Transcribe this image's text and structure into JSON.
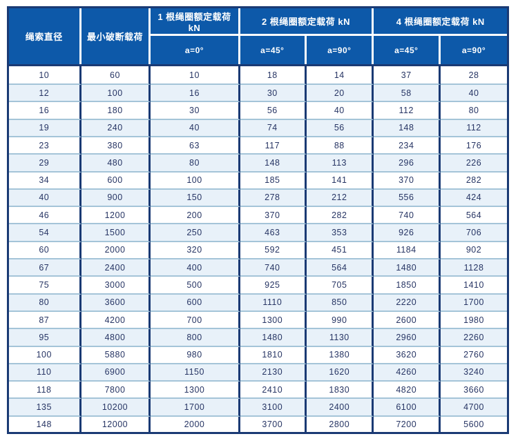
{
  "colors": {
    "header_bg": "#0d59a9",
    "border_navy": "#1a3a74",
    "row_alt_bg": "#e8f1f9",
    "row_divider": "#a4c4d8",
    "text_navy": "#273564",
    "header_text": "#ffffff"
  },
  "table": {
    "headers": {
      "rope_diameter": "绳索直径",
      "min_breaking_load": "最小破断载荷",
      "group_1_leg": "1 根绳圈额定载荷 kN",
      "group_2_leg": "2 根绳圈额定载荷 kN",
      "group_4_leg": "4 根绳圈额定载荷 kN",
      "a0": "a=0°",
      "a45_2leg": "a=45°",
      "a90_2leg": "a=90°",
      "a45_4leg": "a=45°",
      "a90_4leg": "a=90°"
    },
    "rows": [
      [
        "10",
        "60",
        "10",
        "18",
        "14",
        "37",
        "28"
      ],
      [
        "12",
        "100",
        "16",
        "30",
        "20",
        "58",
        "40"
      ],
      [
        "16",
        "180",
        "30",
        "56",
        "40",
        "112",
        "80"
      ],
      [
        "19",
        "240",
        "40",
        "74",
        "56",
        "148",
        "112"
      ],
      [
        "23",
        "380",
        "63",
        "117",
        "88",
        "234",
        "176"
      ],
      [
        "29",
        "480",
        "80",
        "148",
        "113",
        "296",
        "226"
      ],
      [
        "34",
        "600",
        "100",
        "185",
        "141",
        "370",
        "282"
      ],
      [
        "40",
        "900",
        "150",
        "278",
        "212",
        "556",
        "424"
      ],
      [
        "46",
        "1200",
        "200",
        "370",
        "282",
        "740",
        "564"
      ],
      [
        "54",
        "1500",
        "250",
        "463",
        "353",
        "926",
        "706"
      ],
      [
        "60",
        "2000",
        "320",
        "592",
        "451",
        "1184",
        "902"
      ],
      [
        "67",
        "2400",
        "400",
        "740",
        "564",
        "1480",
        "1128"
      ],
      [
        "75",
        "3000",
        "500",
        "925",
        "705",
        "1850",
        "1410"
      ],
      [
        "80",
        "3600",
        "600",
        "1110",
        "850",
        "2220",
        "1700"
      ],
      [
        "87",
        "4200",
        "700",
        "1300",
        "990",
        "2600",
        "1980"
      ],
      [
        "95",
        "4800",
        "800",
        "1480",
        "1130",
        "2960",
        "2260"
      ],
      [
        "100",
        "5880",
        "980",
        "1810",
        "1380",
        "3620",
        "2760"
      ],
      [
        "110",
        "6900",
        "1150",
        "2130",
        "1620",
        "4260",
        "3240"
      ],
      [
        "118",
        "7800",
        "1300",
        "2410",
        "1830",
        "4820",
        "3660"
      ],
      [
        "135",
        "10200",
        "1700",
        "3100",
        "2400",
        "6100",
        "4700"
      ],
      [
        "148",
        "12000",
        "2000",
        "3700",
        "2800",
        "7200",
        "5600"
      ]
    ]
  }
}
